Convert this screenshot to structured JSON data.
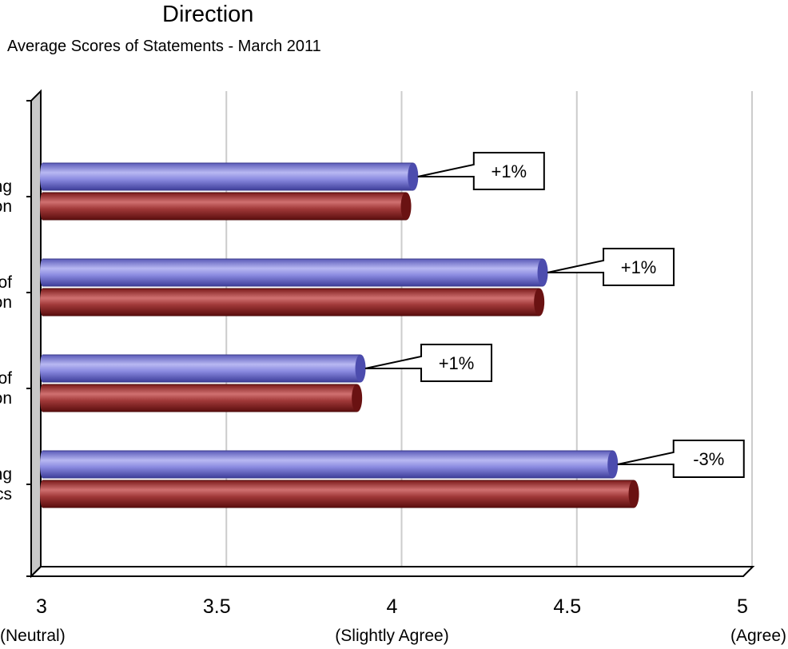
{
  "chart_data": {
    "type": "bar",
    "orientation": "horizontal",
    "title": "Direction",
    "subtitle": "Average Scores of Statements - March 2011",
    "categories": [
      {
        "label_lines": [
          "ng",
          "on"
        ]
      },
      {
        "label_lines": [
          "of",
          "on"
        ]
      },
      {
        "label_lines": [
          "of",
          "on"
        ]
      },
      {
        "label_lines": [
          "ng",
          "ics"
        ]
      }
    ],
    "series": [
      {
        "color": "#7f7fd6",
        "values": [
          4.06,
          4.43,
          3.91,
          4.63
        ]
      },
      {
        "color": "#9c3030",
        "values": [
          4.04,
          4.42,
          3.9,
          4.69
        ]
      }
    ],
    "callouts": [
      "+1%",
      "+1%",
      "+1%",
      "-3%"
    ],
    "x_axis": {
      "xlim": [
        3,
        5
      ],
      "ticks": [
        3,
        3.5,
        4,
        4.5,
        5
      ],
      "tick_labels": [
        "3",
        "3.5",
        "4",
        "4.5",
        "5"
      ],
      "sublabels": [
        {
          "value": 3,
          "text": "(Neutral)"
        },
        {
          "value": 4,
          "text": "(Slightly Agree)"
        },
        {
          "value": 5,
          "text": "(Agree)"
        }
      ]
    },
    "grid": true,
    "legend": "none"
  }
}
